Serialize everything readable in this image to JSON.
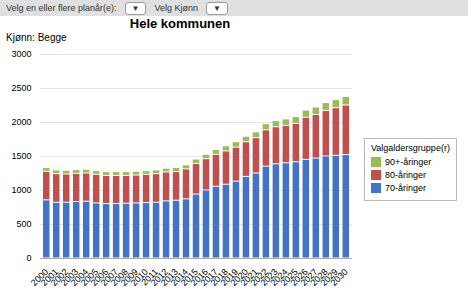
{
  "chart_data": {
    "type": "bar",
    "stacked": true,
    "title": "Hele kommunen",
    "subtitle": "Kjønn:  Begge",
    "annotations": [
      "Velg en eller flere planår(e):",
      "▼",
      "Velg Kjønn",
      "▼"
    ],
    "legend_title": "Valgaldersgruppe(r)",
    "categories": [
      "2000",
      "2001",
      "2002",
      "2003",
      "2004",
      "2005",
      "2006",
      "2007",
      "2008",
      "2009",
      "2010",
      "2011",
      "2012",
      "2013",
      "2014",
      "2015",
      "2016",
      "2017",
      "2018",
      "2019",
      "2020",
      "2021",
      "2022",
      "2023",
      "2024",
      "2025",
      "2026",
      "2027",
      "2028",
      "2029",
      "2030"
    ],
    "series": [
      {
        "name": "70-åringer",
        "color": "#4472C4",
        "values": [
          855,
          820,
          820,
          830,
          835,
          810,
          800,
          800,
          805,
          810,
          815,
          820,
          840,
          850,
          870,
          940,
          1000,
          1055,
          1085,
          1130,
          1200,
          1250,
          1350,
          1385,
          1400,
          1415,
          1450,
          1470,
          1500,
          1510,
          1520
        ]
      },
      {
        "name": "80-åringer",
        "color": "#C0504D",
        "values": [
          420,
          420,
          415,
          415,
          415,
          420,
          415,
          415,
          410,
          410,
          415,
          420,
          425,
          420,
          440,
          450,
          460,
          470,
          490,
          500,
          510,
          520,
          535,
          545,
          550,
          565,
          620,
          640,
          670,
          700,
          730
        ]
      },
      {
        "name": "90+-åringer",
        "color": "#9BBB59",
        "values": [
          55,
          55,
          55,
          55,
          55,
          55,
          55,
          55,
          55,
          55,
          55,
          55,
          55,
          60,
          60,
          65,
          65,
          70,
          75,
          80,
          80,
          85,
          90,
          90,
          95,
          100,
          105,
          110,
          115,
          120,
          125
        ]
      }
    ],
    "ylim": [
      0,
      3000
    ],
    "yticks": [
      0,
      500,
      1000,
      1500,
      2000,
      2500,
      3000
    ],
    "grid": true,
    "legend": "right"
  }
}
